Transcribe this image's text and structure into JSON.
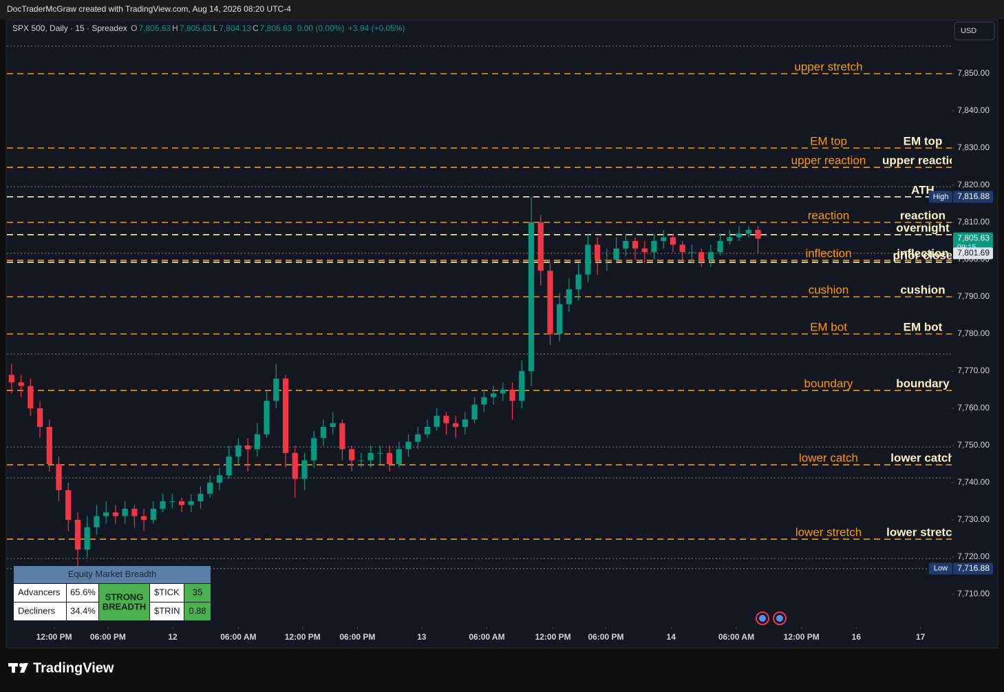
{
  "header": {
    "attribution": "DocTraderMcGraw created with TradingView.com, Aug 14, 2026 08:20 UTC-4",
    "symbol": "SPX 500, Daily · 15 · Spreadex",
    "ohlc": [
      [
        "O",
        "7,805.63"
      ],
      [
        "H",
        "7,805.63"
      ],
      [
        "L",
        "7,804.13"
      ],
      [
        "C",
        "7,805.63"
      ]
    ],
    "change": "0.00 (0.00%)",
    "change_prev": "+3.94 (+0.05%)",
    "currency": "USD"
  },
  "chart_data": {
    "type": "candlestick",
    "up_color": "#089981",
    "down_color": "#f23645",
    "xlim": [
      0,
      100
    ],
    "xticks": [
      {
        "value": 5.0,
        "label": "12:00 PM"
      },
      {
        "value": 10.7,
        "label": "06:00 PM"
      },
      {
        "value": 17.55,
        "label": "12"
      },
      {
        "value": 24.5,
        "label": "06:00 AM"
      },
      {
        "value": 31.3,
        "label": "12:00 PM"
      },
      {
        "value": 37.1,
        "label": "06:00 PM"
      },
      {
        "value": 43.9,
        "label": "13"
      },
      {
        "value": 50.8,
        "label": "06:00 AM"
      },
      {
        "value": 57.8,
        "label": "12:00 PM"
      },
      {
        "value": 63.4,
        "label": "06:00 PM"
      },
      {
        "value": 70.3,
        "label": "14"
      },
      {
        "value": 77.2,
        "label": "06:00 AM"
      },
      {
        "value": 84.1,
        "label": "12:00 PM"
      },
      {
        "value": 89.9,
        "label": "16"
      },
      {
        "value": 96.7,
        "label": "17"
      }
    ],
    "ylim": [
      7702.22,
      7859.63
    ],
    "yticks": [
      {
        "value": 7850,
        "label": "7,850.00"
      },
      {
        "value": 7840,
        "label": "7,840.00"
      },
      {
        "value": 7830,
        "label": "7,830.00"
      },
      {
        "value": 7820,
        "label": "7,820.00"
      },
      {
        "value": 7810,
        "label": "7,810.00"
      },
      {
        "value": 7800,
        "label": "7,800.00"
      },
      {
        "value": 7790,
        "label": "7,790.00"
      },
      {
        "value": 7780,
        "label": "7,780.00"
      },
      {
        "value": 7770,
        "label": "7,770.00"
      },
      {
        "value": 7760,
        "label": "7,760.00"
      },
      {
        "value": 7750,
        "label": "7,750.00"
      },
      {
        "value": 7740,
        "label": "7,740.00"
      },
      {
        "value": 7730,
        "label": "7,730.00"
      },
      {
        "value": 7720,
        "label": "7,720.00"
      },
      {
        "value": 7710,
        "label": "7,710.00"
      }
    ],
    "open": [
      7769,
      7767,
      7766,
      7760,
      7755,
      7745,
      7738,
      7730,
      7722,
      7728,
      7731,
      7732,
      7731,
      7733,
      7731,
      7730,
      7733,
      7735,
      7735,
      7734,
      7735,
      7737,
      7740,
      7742,
      7747,
      7750,
      7749,
      7753,
      7762,
      7768,
      7748,
      7741,
      7746,
      7752,
      7755,
      7756,
      7749,
      7746,
      7746,
      7748,
      7748,
      7745,
      7749,
      7751,
      7753,
      7755,
      7758,
      7756,
      7755,
      7757,
      7761,
      7763,
      7764,
      7765,
      7762,
      7770,
      7810,
      7797,
      7780,
      7788,
      7792,
      7796,
      7804,
      7800,
      7800,
      7803,
      7805,
      7803,
      7802,
      7805,
      7806,
      7804,
      7802,
      7802,
      7800,
      7802,
      7805,
      7806,
      7807,
      7808
    ],
    "high": [
      7772,
      7769,
      7768,
      7762,
      7757,
      7747,
      7740,
      7732,
      7731,
      7734,
      7735,
      7734,
      7735,
      7734,
      7733,
      7735,
      7737,
      7737,
      7736,
      7737,
      7739,
      7742,
      7744,
      7750,
      7752,
      7752,
      7756,
      7765,
      7772,
      7769,
      7750,
      7748,
      7754,
      7757,
      7759,
      7757,
      7750,
      7748,
      7750,
      7750,
      7750,
      7751,
      7753,
      7755,
      7757,
      7760,
      7759,
      7758,
      7759,
      7763,
      7765,
      7766,
      7767,
      7767,
      7773,
      7816.88,
      7812,
      7799,
      7791,
      7795,
      7799,
      7807,
      7806,
      7803,
      7806,
      7807,
      7806,
      7805,
      7807,
      7808,
      7807,
      7805,
      7804,
      7803,
      7804,
      7807,
      7808,
      7809,
      7809,
      7809
    ],
    "low": [
      7764,
      7763,
      7758,
      7752,
      7743,
      7735,
      7727,
      7716.88,
      7720,
      7726,
      7729,
      7729,
      7729,
      7728,
      7727,
      7729,
      7732,
      7733,
      7732,
      7732,
      7733,
      7736,
      7738,
      7741,
      7745,
      7743,
      7747,
      7752,
      7760,
      7744,
      7736,
      7738,
      7744,
      7750,
      7753,
      7746,
      7743,
      7744,
      7744,
      7745,
      7743,
      7744,
      7747,
      7749,
      7752,
      7754,
      7753,
      7752,
      7753,
      7756,
      7759,
      7761,
      7762,
      7757,
      7760,
      7766,
      7793,
      7777,
      7778,
      7786,
      7789,
      7794,
      7796,
      7797,
      7799,
      7801,
      7800,
      7799,
      7800,
      7803,
      7802,
      7800,
      7799,
      7798,
      7798,
      7801,
      7804,
      7805,
      7806,
      7801.69
    ],
    "close": [
      7767,
      7766,
      7760,
      7755,
      7745,
      7738,
      7730,
      7722,
      7728,
      7731,
      7732,
      7731,
      7733,
      7731,
      7730,
      7733,
      7735,
      7735,
      7734,
      7735,
      7737,
      7740,
      7742,
      7747,
      7750,
      7749,
      7753,
      7762,
      7768,
      7748,
      7741,
      7746,
      7752,
      7755,
      7756,
      7749,
      7746,
      7746,
      7748,
      7748,
      7745,
      7749,
      7751,
      7753,
      7755,
      7758,
      7756,
      7755,
      7757,
      7761,
      7763,
      7764,
      7765,
      7762,
      7770,
      7810,
      7797,
      7780,
      7788,
      7792,
      7796,
      7804,
      7800,
      7800,
      7803,
      7805,
      7803,
      7802,
      7805,
      7806,
      7804,
      7802,
      7802,
      7800,
      7802,
      7805,
      7806,
      7807,
      7808,
      7805.63
    ],
    "dotted_levels": [
      7857.4,
      7819.6,
      7801.69,
      7774.6,
      7749.6,
      7741.3,
      7719.6,
      7716.88
    ],
    "left_label_color": "#ff9800",
    "right_label_color": "#fff3c4",
    "levels": [
      {
        "value": 7850,
        "color": "#ff9800",
        "left_label": "upper stretch"
      },
      {
        "value": 7830,
        "color": "#ff9800",
        "left_label": "EM top",
        "right_label": "EM top"
      },
      {
        "value": 7824.8,
        "color": "#ff9800",
        "left_label": "upper reaction",
        "right_label": "upper reaction"
      },
      {
        "value": 7816.88,
        "color": "#fff3c4",
        "right_label": "ATH"
      },
      {
        "value": 7810,
        "color": "#ff9800",
        "left_label": "reaction",
        "right_label": "reaction"
      },
      {
        "value": 7806.7,
        "color": "#fff3c4",
        "right_label": "overnight"
      },
      {
        "value": 7799.8,
        "color": "#ff9800",
        "left_label": "inflection",
        "right_label": "inflection"
      },
      {
        "value": 7799.3,
        "color": "#fff3c4",
        "right_label": "prior close"
      },
      {
        "value": 7790,
        "color": "#ff9800",
        "left_label": "cushion",
        "right_label": "cushion"
      },
      {
        "value": 7780,
        "color": "#ff9800",
        "left_label": "EM bot",
        "right_label": "EM bot"
      },
      {
        "value": 7764.8,
        "color": "#ff9800",
        "left_label": "boundary",
        "right_label": "boundary"
      },
      {
        "value": 7744.8,
        "color": "#ff9800",
        "left_label": "lower catch",
        "right_label": "lower catch"
      },
      {
        "value": 7724.8,
        "color": "#ff9800",
        "left_label": "lower stretch",
        "right_label": "lower stretch"
      }
    ],
    "price_badges": [
      {
        "tag": "High",
        "value": 7816.88,
        "label": "7,816.88",
        "color": "#1e3a6e",
        "text_color": "#ffffff"
      },
      {
        "value": 7805.63,
        "label": "7,805.63",
        "sub": "09:15",
        "color": "#089981",
        "text_color": "#ffffff"
      },
      {
        "value": 7801.69,
        "label": "7,801.69",
        "color": "#e0e3eb",
        "text_color": "#131722"
      },
      {
        "tag": "Low",
        "value": 7716.88,
        "label": "7,716.88",
        "color": "#1e3a6e",
        "text_color": "#ffffff"
      }
    ]
  },
  "breadth_table": {
    "title": "Equity Market Breadth",
    "rows": [
      [
        "Advancers",
        "65.6%"
      ],
      [
        "Decliners",
        "34.4%"
      ]
    ],
    "signal": [
      "STRONG",
      "BREADTH"
    ],
    "indicators": [
      [
        "$TICK",
        "35"
      ],
      [
        "$TRIN",
        "0.88"
      ]
    ]
  },
  "footer": {
    "brand": "TradingView"
  }
}
